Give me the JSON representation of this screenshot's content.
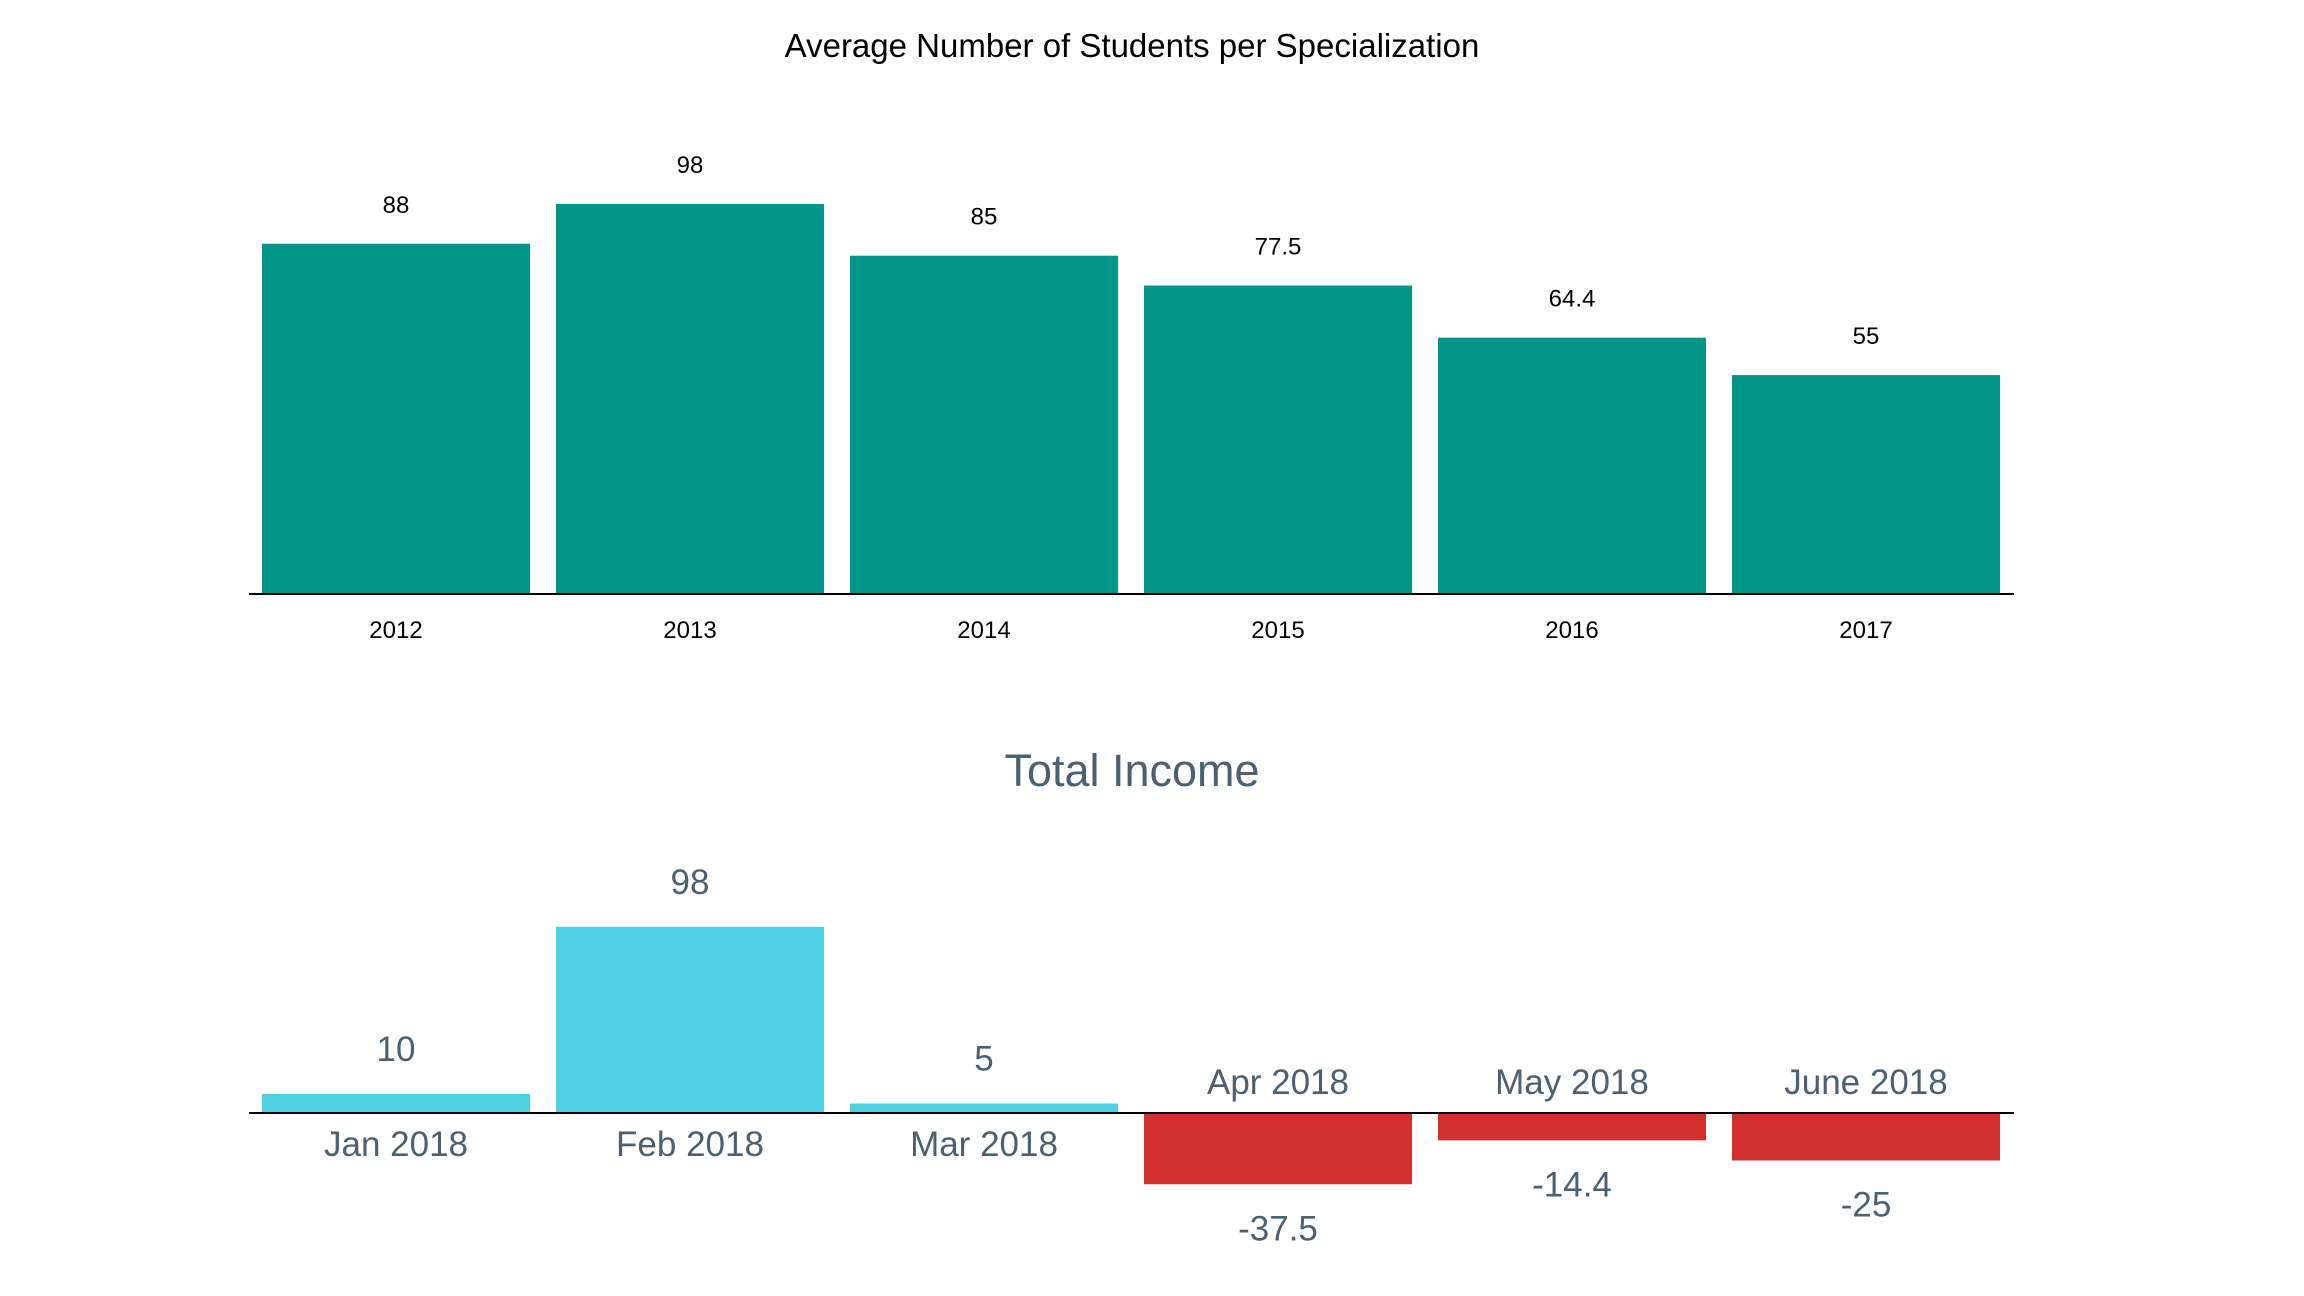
{
  "chart_data": [
    {
      "type": "bar",
      "title": "Average Number of Students per Specialization",
      "xlabel": "",
      "ylabel": "",
      "categories": [
        "2012",
        "2013",
        "2014",
        "2015",
        "2016",
        "2017"
      ],
      "values": [
        88,
        98,
        85,
        77.5,
        64.4,
        55
      ],
      "data_labels": [
        "88",
        "98",
        "85",
        "77.5",
        "64.4",
        "55"
      ],
      "ylim": [
        0,
        100
      ],
      "grid": false,
      "legend": "none",
      "bar_color": "#009688",
      "axis_color": "#000000",
      "text_color": "#000000"
    },
    {
      "type": "bar",
      "title": "Total Income",
      "xlabel": "",
      "ylabel": "",
      "categories": [
        "Jan 2018",
        "Feb 2018",
        "Mar 2018",
        "Apr 2018",
        "May 2018",
        "June 2018"
      ],
      "values": [
        10,
        98,
        5,
        -37.5,
        -14.4,
        -25
      ],
      "data_labels": [
        "10",
        "98",
        "5",
        "-37.5",
        "-14.4",
        "-25"
      ],
      "ylim": [
        -37.5,
        98
      ],
      "grid": false,
      "legend": "none",
      "positive_color": "#4dd0e1",
      "negative_color": "#d32f2f",
      "axis_color": "#000000",
      "text_color": "#4b6172"
    }
  ]
}
